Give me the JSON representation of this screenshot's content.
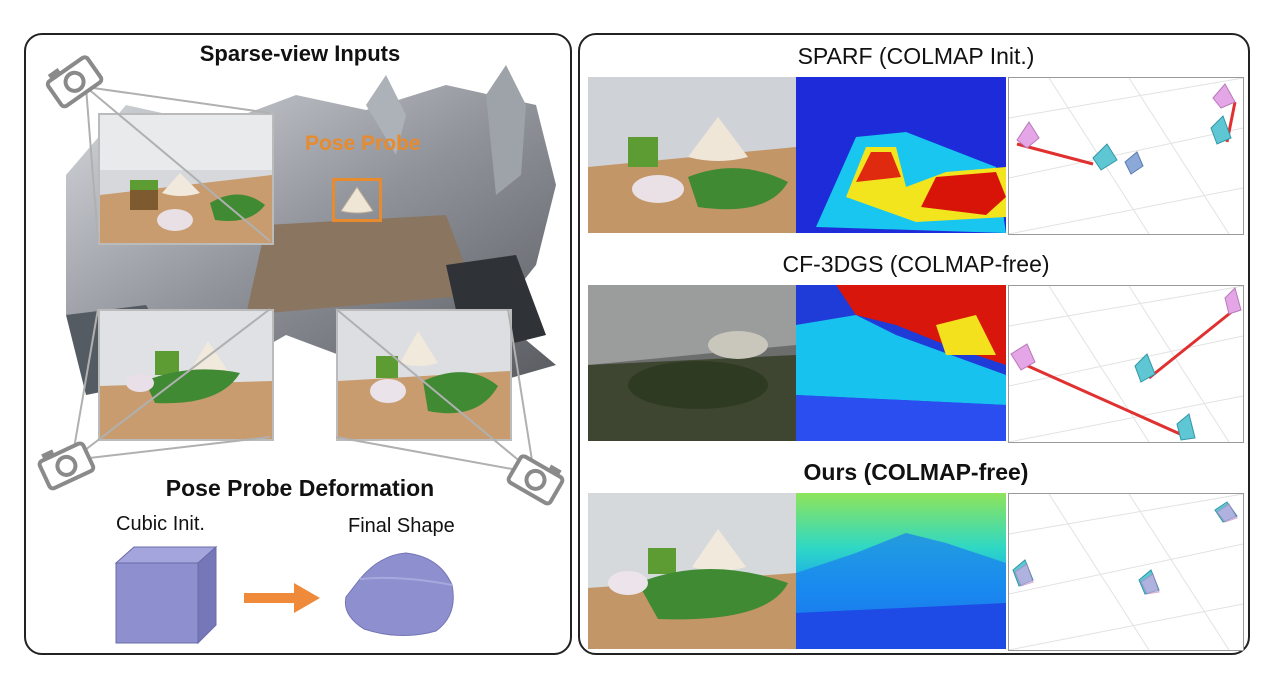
{
  "left": {
    "title": "Sparse-view Inputs",
    "probe_label": "Pose Probe",
    "deform_title": "Pose Probe Deformation",
    "cubic_label": "Cubic Init.",
    "final_label": "Final Shape"
  },
  "right": {
    "rows": [
      {
        "title": "SPARF (COLMAP Init.)"
      },
      {
        "title": "CF-3DGS (COLMAP-free)"
      },
      {
        "title": "Ours (COLMAP-free)"
      }
    ]
  },
  "colors": {
    "probe_orange": "#e88a2e",
    "arrow_orange": "#ee8a3a",
    "shape_purple": "#8d8fcf",
    "pose_red": "#e03030",
    "cam_pink": "#e4a6e6",
    "cam_cyan": "#5fc6d4"
  }
}
